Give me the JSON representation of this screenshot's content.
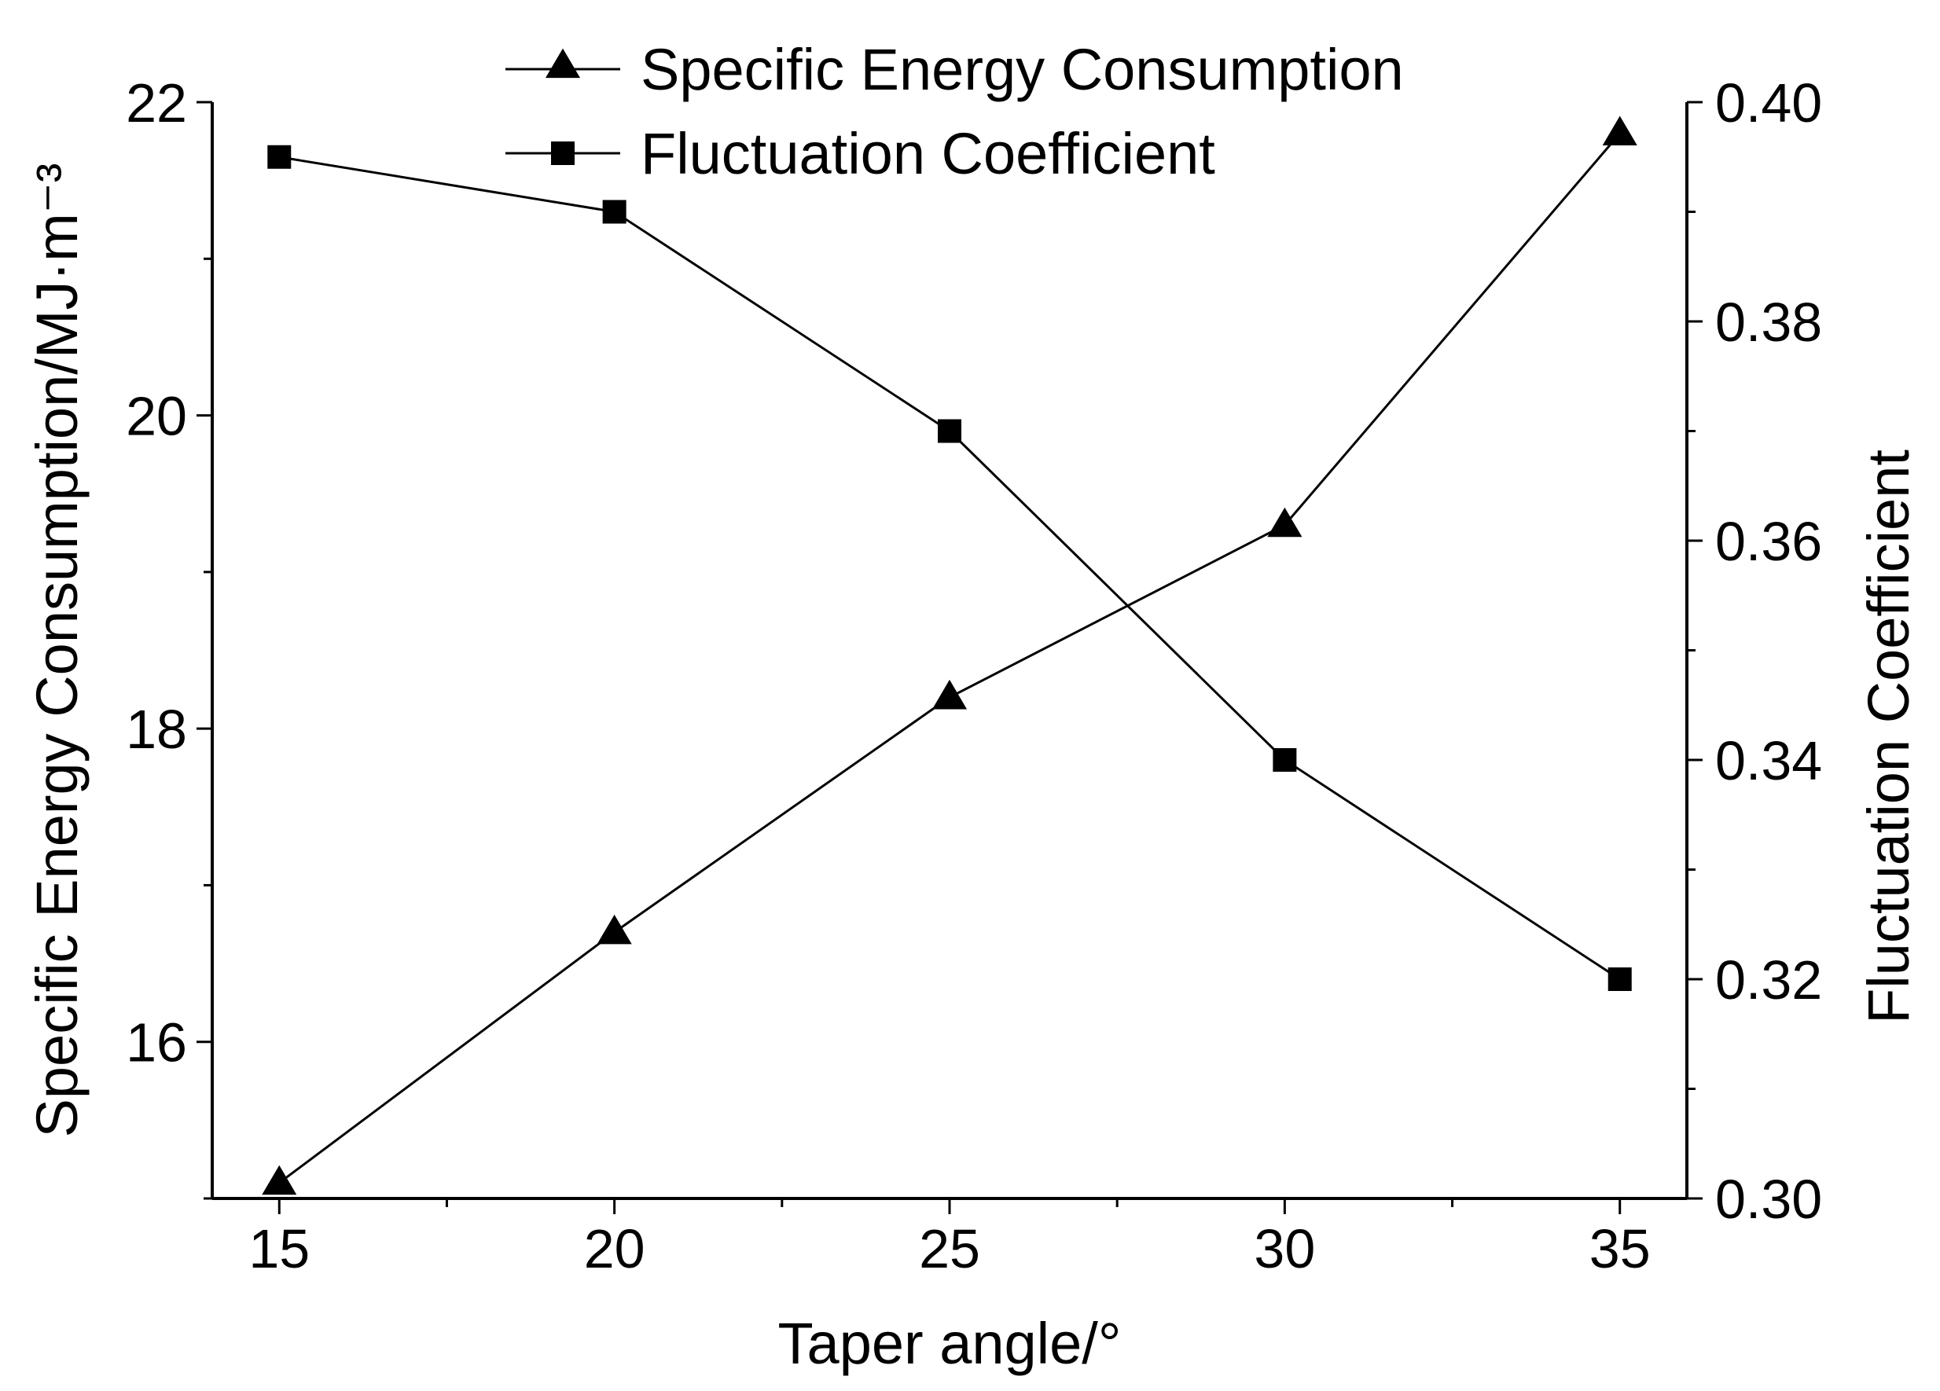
{
  "chart_data": {
    "type": "line",
    "x": [
      15,
      20,
      25,
      30,
      35
    ],
    "xlabel": "Taper angle/°",
    "xlim": [
      14,
      36
    ],
    "x_ticks": [
      "15",
      "20",
      "25",
      "30",
      "35"
    ],
    "x_tick_values": [
      15,
      20,
      25,
      30,
      35
    ],
    "ylabel_left": "Specific Energy Consumption/MJ·m⁻³",
    "ylim_left": [
      15,
      22
    ],
    "y_ticks_left": [
      "16",
      "18",
      "20",
      "22"
    ],
    "y_tick_values_left": [
      16,
      18,
      20,
      22
    ],
    "ylabel_right": "Fluctuation Coefficient",
    "ylim_right": [
      0.3,
      0.4
    ],
    "y_ticks_right": [
      "0.30",
      "0.32",
      "0.34",
      "0.36",
      "0.38",
      "0.40"
    ],
    "y_tick_values_right": [
      0.3,
      0.32,
      0.34,
      0.36,
      0.38,
      0.4
    ],
    "series": [
      {
        "name": "Specific Energy Consumption",
        "axis": "left",
        "marker": "triangle",
        "values": [
          15.1,
          16.7,
          18.2,
          19.3,
          21.8
        ]
      },
      {
        "name": "Fluctuation Coefficient",
        "axis": "right",
        "marker": "square",
        "values": [
          0.395,
          0.39,
          0.37,
          0.34,
          0.32
        ]
      }
    ],
    "legend_position": "top-center",
    "grid": false,
    "colors": {
      "line": "#000000",
      "background": "#ffffff"
    }
  }
}
